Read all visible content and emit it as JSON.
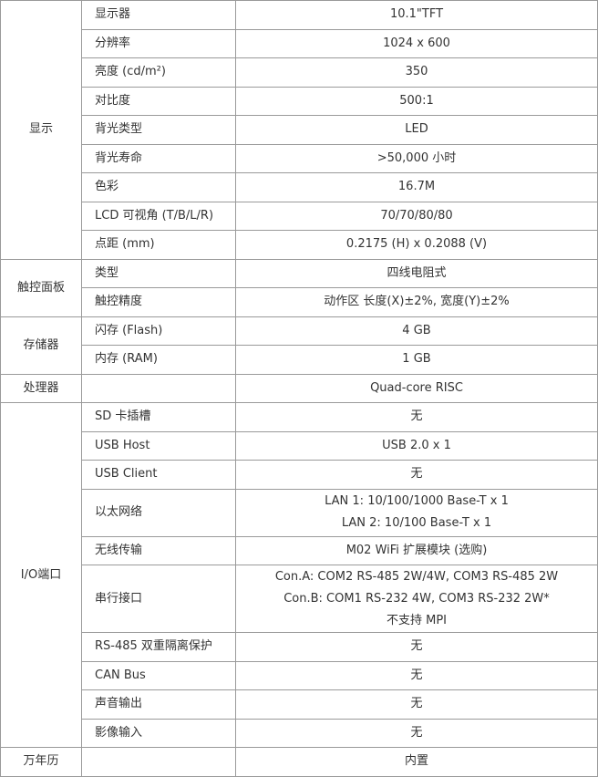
{
  "groups": [
    {
      "category": "显示",
      "rows": [
        {
          "label": "显示器",
          "value": [
            "10.1\"TFT"
          ]
        },
        {
          "label": "分辨率",
          "value": [
            "1024 x 600"
          ]
        },
        {
          "label": "亮度 (cd/m²)",
          "value": [
            "350"
          ]
        },
        {
          "label": "对比度",
          "value": [
            "500:1"
          ]
        },
        {
          "label": "背光类型",
          "value": [
            "LED"
          ]
        },
        {
          "label": "背光寿命",
          "value": [
            ">50,000 小时"
          ]
        },
        {
          "label": "色彩",
          "value": [
            "16.7M"
          ]
        },
        {
          "label": "LCD 可视角 (T/B/L/R)",
          "value": [
            "70/70/80/80"
          ]
        },
        {
          "label": "点距 (mm)",
          "value": [
            "0.2175 (H) x 0.2088 (V)"
          ]
        }
      ]
    },
    {
      "category": "触控面板",
      "rows": [
        {
          "label": "类型",
          "value": [
            "四线电阻式"
          ]
        },
        {
          "label": "触控精度",
          "value": [
            "动作区 长度(X)±2%, 宽度(Y)±2%"
          ]
        }
      ]
    },
    {
      "category": "存储器",
      "rows": [
        {
          "label": "闪存 (Flash)",
          "value": [
            "4 GB"
          ]
        },
        {
          "label": "内存 (RAM)",
          "value": [
            "1 GB"
          ]
        }
      ]
    },
    {
      "category": "处理器",
      "rows": [
        {
          "label": "",
          "value": [
            "Quad-core RISC"
          ]
        }
      ]
    },
    {
      "category": "I/O端口",
      "rows": [
        {
          "label": "SD 卡插槽",
          "value": [
            "无"
          ]
        },
        {
          "label": "USB Host",
          "value": [
            "USB 2.0 x 1"
          ]
        },
        {
          "label": "USB Client",
          "value": [
            "无"
          ]
        },
        {
          "label": "以太网络",
          "value": [
            "LAN 1: 10/100/1000 Base-T x 1",
            "LAN 2: 10/100 Base-T x 1"
          ]
        },
        {
          "label": "无线传输",
          "value": [
            "M02 WiFi 扩展模块 (选购)"
          ]
        },
        {
          "label": "串行接口",
          "value": [
            "Con.A: COM2 RS-485 2W/4W, COM3 RS-485 2W",
            "Con.B: COM1 RS-232 4W, COM3 RS-232 2W*",
            "不支持 MPI"
          ]
        },
        {
          "label": "RS-485 双重隔离保护",
          "value": [
            "无"
          ]
        },
        {
          "label": "CAN Bus",
          "value": [
            "无"
          ]
        },
        {
          "label": "声音输出",
          "value": [
            "无"
          ]
        },
        {
          "label": "影像输入",
          "value": [
            "无"
          ]
        }
      ]
    },
    {
      "category": "万年历",
      "rows": [
        {
          "label": "",
          "value": [
            "内置"
          ]
        }
      ]
    }
  ]
}
